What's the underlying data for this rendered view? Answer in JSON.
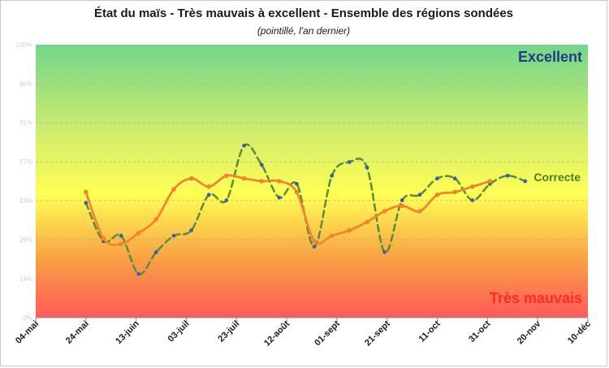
{
  "chart_data": {
    "type": "line",
    "title": "État du maïs - Très mauvais à excellent - Ensemble des régions sondées",
    "subtitle": "(pointillé, l'an dernier)",
    "xlabel": "",
    "ylabel": "",
    "x_tick_labels": [
      "04-mai",
      "24-mai",
      "13-juin",
      "03-juil",
      "23-juil",
      "12-août",
      "01-sept",
      "21-sept",
      "11-oct",
      "31-oct",
      "20-nov",
      "10-déc"
    ],
    "x_start": "2020-05-04",
    "x_step_days": 20,
    "ylim": [
      0,
      100
    ],
    "y_ticks": [
      0,
      14.3,
      28.6,
      42.9,
      57.1,
      71.4,
      85.7,
      100
    ],
    "grid": true,
    "zone_labels": {
      "top": "Excellent",
      "middle": "Correcte",
      "bottom": "Très mauvais"
    },
    "zone_colors": {
      "top": "#73d68c",
      "upper_mid": "#d8ee6a",
      "middle": "#ffff55",
      "lower_mid": "#f9a244",
      "bottom": "#ff5a5a"
    },
    "series": [
      {
        "style": "solid",
        "color": "#f0852d",
        "marker_color": "#f0852d",
        "points": [
          [
            "2020-05-24",
            46
          ],
          [
            "2020-05-31",
            29
          ],
          [
            "2020-06-07",
            27
          ],
          [
            "2020-06-14",
            31
          ],
          [
            "2020-06-21",
            36
          ],
          [
            "2020-06-28",
            47
          ],
          [
            "2020-07-05",
            51
          ],
          [
            "2020-07-12",
            48
          ],
          [
            "2020-07-19",
            52
          ],
          [
            "2020-07-26",
            51
          ],
          [
            "2020-08-02",
            50
          ],
          [
            "2020-08-09",
            50
          ],
          [
            "2020-08-16",
            46
          ],
          [
            "2020-08-23",
            28
          ],
          [
            "2020-08-30",
            30
          ],
          [
            "2020-09-06",
            32
          ],
          [
            "2020-09-13",
            35
          ],
          [
            "2020-09-20",
            39
          ],
          [
            "2020-09-27",
            41
          ],
          [
            "2020-10-04",
            39
          ],
          [
            "2020-10-11",
            45
          ],
          [
            "2020-10-18",
            46
          ],
          [
            "2020-10-25",
            48
          ],
          [
            "2020-11-01",
            50
          ]
        ]
      },
      {
        "style": "dashed",
        "color": "#5a8c3a",
        "marker_color": "#3d5ea8",
        "points": [
          [
            "2020-05-24",
            42
          ],
          [
            "2020-05-31",
            28
          ],
          [
            "2020-06-07",
            30
          ],
          [
            "2020-06-14",
            16
          ],
          [
            "2020-06-21",
            24
          ],
          [
            "2020-06-28",
            30
          ],
          [
            "2020-07-05",
            32
          ],
          [
            "2020-07-12",
            45
          ],
          [
            "2020-07-19",
            43
          ],
          [
            "2020-07-26",
            63
          ],
          [
            "2020-08-02",
            56
          ],
          [
            "2020-08-09",
            44
          ],
          [
            "2020-08-16",
            49
          ],
          [
            "2020-08-23",
            26
          ],
          [
            "2020-08-30",
            52
          ],
          [
            "2020-09-06",
            57
          ],
          [
            "2020-09-13",
            55
          ],
          [
            "2020-09-20",
            24
          ],
          [
            "2020-09-27",
            43
          ],
          [
            "2020-10-04",
            45
          ],
          [
            "2020-10-11",
            51
          ],
          [
            "2020-10-18",
            51
          ],
          [
            "2020-10-25",
            43
          ],
          [
            "2020-11-01",
            49
          ],
          [
            "2020-11-08",
            52
          ],
          [
            "2020-11-15",
            50
          ]
        ]
      }
    ]
  }
}
